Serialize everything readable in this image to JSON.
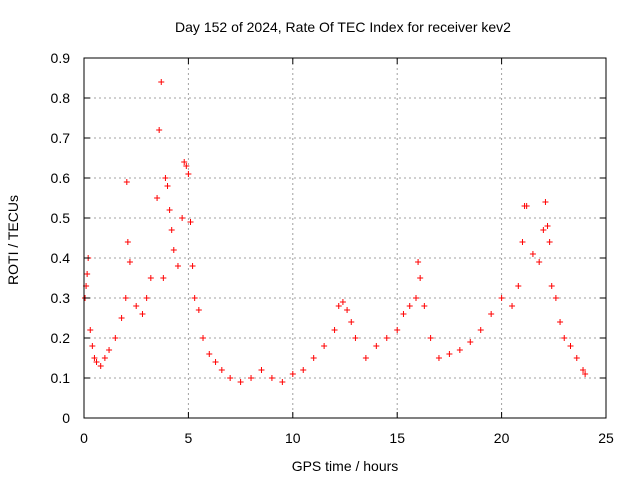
{
  "chart_data": {
    "type": "scatter",
    "title": "Day 152 of 2024, Rate Of TEC Index for receiver kev2",
    "xlabel": "GPS time / hours",
    "ylabel": "ROTI / TECUs",
    "xlim": [
      0,
      25
    ],
    "ylim": [
      0,
      0.9
    ],
    "x_ticks": [
      "0",
      "5",
      "10",
      "15",
      "20",
      "25"
    ],
    "y_ticks": [
      "0",
      "0.1",
      "0.2",
      "0.3",
      "0.4",
      "0.5",
      "0.6",
      "0.7",
      "0.8",
      "0.9"
    ],
    "grid": true,
    "marker": "+",
    "color": "#ff0000",
    "series": [
      {
        "x": [
          0.05,
          0.1,
          0.15,
          0.2,
          0.3,
          0.4,
          0.5,
          0.6,
          0.8,
          1.0,
          1.2,
          1.5,
          1.8,
          2.0,
          2.05,
          2.1,
          2.2,
          2.5,
          2.8,
          3.0,
          3.2,
          3.5,
          3.6,
          3.7,
          3.8,
          3.9,
          4.0,
          4.1,
          4.2,
          4.3,
          4.5,
          4.7,
          4.8,
          4.9,
          5.0,
          5.1,
          5.2,
          5.3,
          5.5,
          5.7,
          6.0,
          6.3,
          6.6,
          7.0,
          7.5,
          8.0,
          8.5,
          9.0,
          9.5,
          10.0,
          10.5,
          11.0,
          11.5,
          12.0,
          12.2,
          12.4,
          12.6,
          12.8,
          13.0,
          13.5,
          14.0,
          14.5,
          15.0,
          15.3,
          15.6,
          15.9,
          16.0,
          16.1,
          16.3,
          16.6,
          17.0,
          17.5,
          18.0,
          18.5,
          19.0,
          19.5,
          20.0,
          20.5,
          20.8,
          21.0,
          21.1,
          21.2,
          21.5,
          21.8,
          22.0,
          22.1,
          22.2,
          22.3,
          22.4,
          22.6,
          22.8,
          23.0,
          23.3,
          23.6,
          23.9,
          24.0
        ],
        "y": [
          0.3,
          0.33,
          0.36,
          0.4,
          0.22,
          0.18,
          0.15,
          0.14,
          0.13,
          0.15,
          0.17,
          0.2,
          0.25,
          0.3,
          0.59,
          0.44,
          0.39,
          0.28,
          0.26,
          0.3,
          0.35,
          0.55,
          0.72,
          0.84,
          0.35,
          0.6,
          0.58,
          0.52,
          0.47,
          0.42,
          0.38,
          0.5,
          0.64,
          0.63,
          0.61,
          0.49,
          0.38,
          0.3,
          0.27,
          0.2,
          0.16,
          0.14,
          0.12,
          0.1,
          0.09,
          0.1,
          0.12,
          0.1,
          0.09,
          0.11,
          0.12,
          0.15,
          0.18,
          0.22,
          0.28,
          0.29,
          0.27,
          0.24,
          0.2,
          0.15,
          0.18,
          0.2,
          0.22,
          0.26,
          0.28,
          0.3,
          0.39,
          0.35,
          0.28,
          0.2,
          0.15,
          0.16,
          0.17,
          0.19,
          0.22,
          0.26,
          0.3,
          0.28,
          0.33,
          0.44,
          0.53,
          0.53,
          0.41,
          0.39,
          0.47,
          0.54,
          0.48,
          0.44,
          0.33,
          0.3,
          0.24,
          0.2,
          0.18,
          0.15,
          0.12,
          0.11
        ]
      }
    ]
  }
}
